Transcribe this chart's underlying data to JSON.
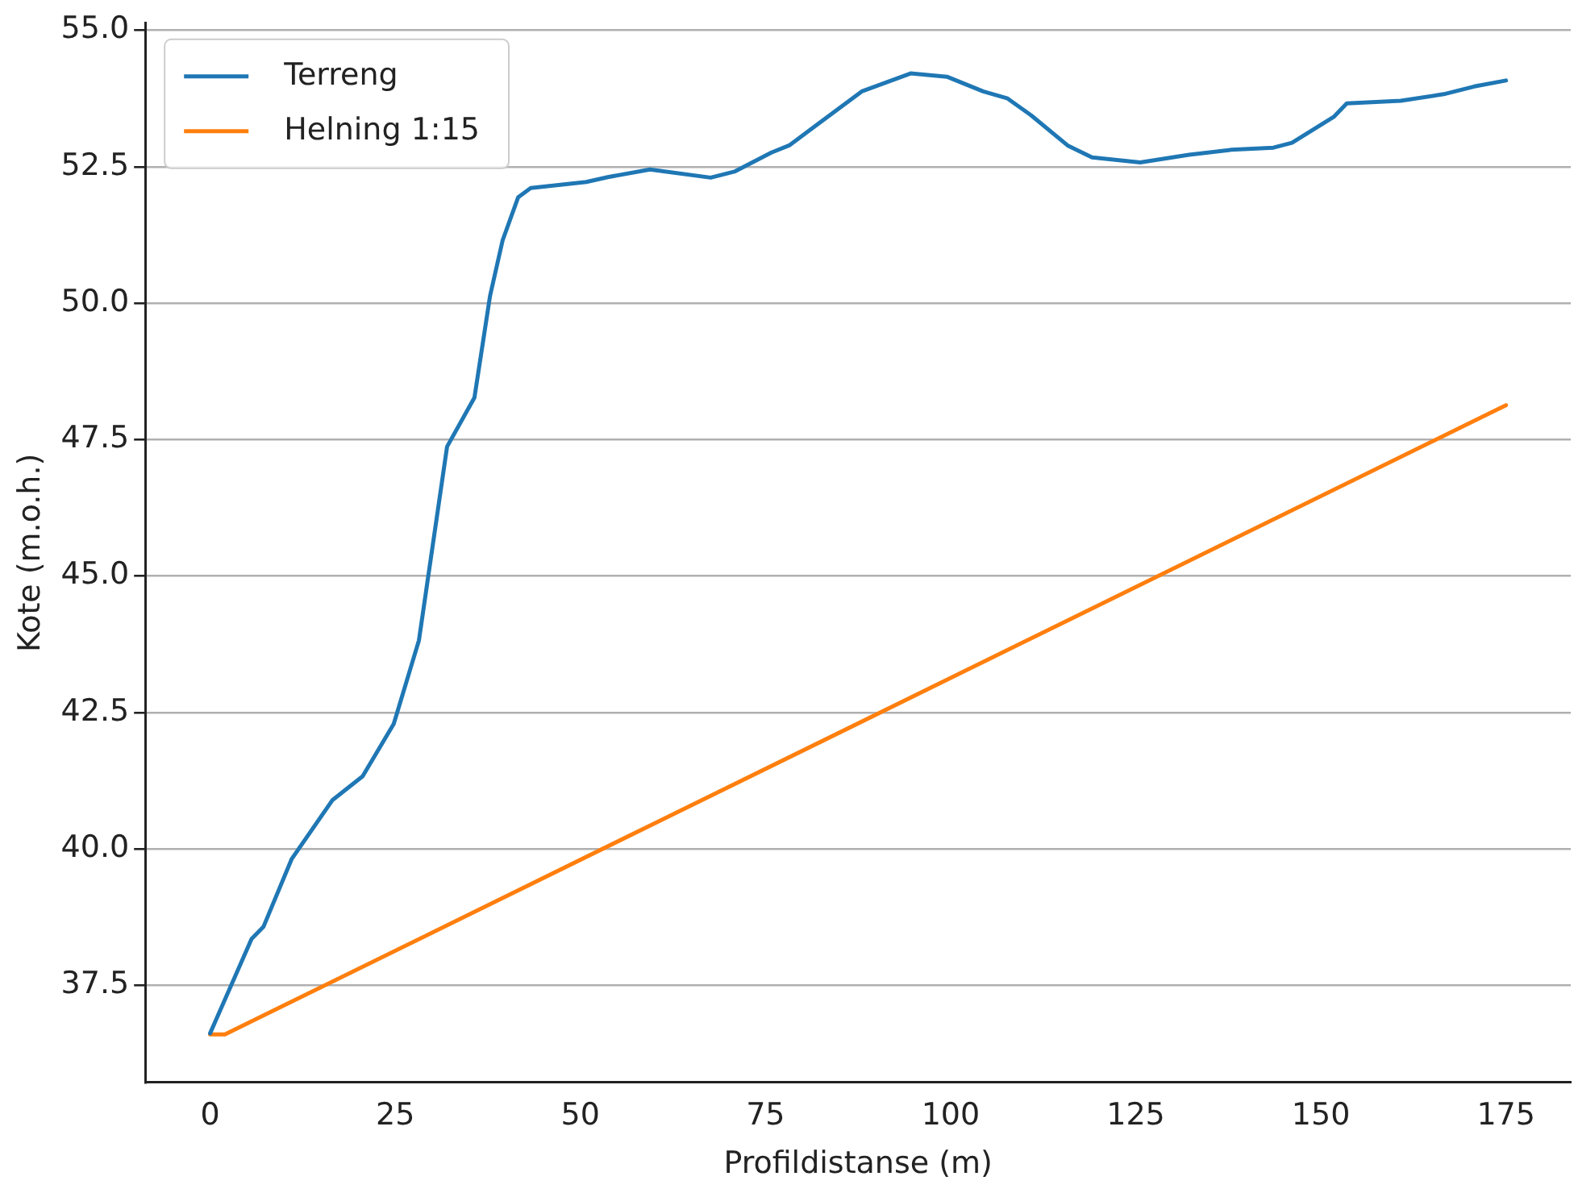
{
  "chart_data": {
    "type": "line",
    "xlabel": "Profildistanse (m)",
    "ylabel": "Kote (m.o.h.)",
    "xlim": [
      -8.75,
      183.75
    ],
    "ylim": [
      35.72,
      55.13
    ],
    "xticks": [
      0,
      25,
      50,
      75,
      100,
      125,
      150,
      175
    ],
    "yticks": [
      37.5,
      {
        "value": 40,
        "label": "40.0"
      },
      42.5,
      {
        "value": 45,
        "label": "45.0"
      },
      47.5,
      {
        "value": 50,
        "label": "50.0"
      },
      52.5,
      {
        "value": 55,
        "label": "55.0"
      }
    ],
    "grid": "y",
    "legend": "top left",
    "line_style": "solid",
    "marker": "none",
    "series": [
      {
        "name": "Terreng",
        "color": "#1f77b4",
        "x": [
          0,
          5.6,
          7.2,
          11,
          16.5,
          20.6,
          24.8,
          28.2,
          32,
          35.7,
          37.8,
          39.5,
          41.6,
          43.3,
          50.8,
          53.7,
          59.4,
          67.6,
          70.8,
          75.8,
          78.2,
          88,
          94.6,
          99.5,
          104.4,
          107.7,
          110.9,
          115.8,
          119.1,
          125.6,
          132.2,
          137.9,
          143.6,
          146.1,
          151.8,
          153.5,
          160.8,
          166.6,
          170.7,
          175
        ],
        "values": [
          36.62,
          38.35,
          38.57,
          39.81,
          40.89,
          41.33,
          42.29,
          43.82,
          47.37,
          48.27,
          50.13,
          51.15,
          51.94,
          52.11,
          52.22,
          52.31,
          52.45,
          52.3,
          52.41,
          52.76,
          52.89,
          53.88,
          54.21,
          54.15,
          53.88,
          53.75,
          53.44,
          52.89,
          52.67,
          52.58,
          52.72,
          52.81,
          52.85,
          52.94,
          53.42,
          53.66,
          53.71,
          53.83,
          53.97,
          54.08
        ]
      },
      {
        "name": "Helning 1:15",
        "color": "#ff7f0e",
        "x": [
          0,
          2,
          175
        ],
        "values": [
          36.6,
          36.6,
          48.13
        ]
      }
    ]
  }
}
